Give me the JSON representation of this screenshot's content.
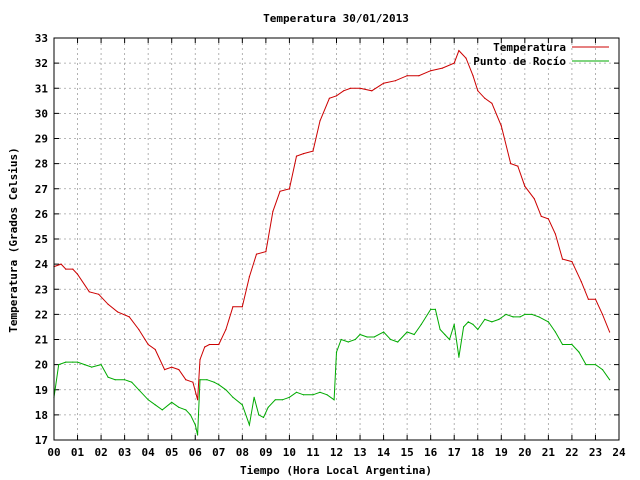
{
  "chart_data": {
    "type": "line",
    "title": "Temperatura 30/01/2013",
    "xlabel": "Tiempo (Hora Local Argentina)",
    "ylabel": "Temperatura (Grados Celsius)",
    "xlim": [
      0,
      24
    ],
    "ylim": [
      17,
      33
    ],
    "xticks": [
      "00",
      "01",
      "02",
      "03",
      "04",
      "05",
      "06",
      "07",
      "08",
      "09",
      "10",
      "11",
      "12",
      "13",
      "14",
      "15",
      "16",
      "17",
      "18",
      "19",
      "20",
      "21",
      "22",
      "23",
      "24"
    ],
    "yticks": [
      17,
      18,
      19,
      20,
      21,
      22,
      23,
      24,
      25,
      26,
      27,
      28,
      29,
      30,
      31,
      32,
      33
    ],
    "grid": true,
    "legend_position": "top-right",
    "colors": {
      "temperatura": "#cc0000",
      "punto_de_rocio": "#00aa00"
    },
    "series": [
      {
        "name": "Temperatura",
        "x": [
          0,
          0.3,
          0.5,
          0.8,
          1.0,
          1.5,
          1.9,
          2.3,
          2.7,
          3.2,
          3.6,
          4.0,
          4.3,
          4.7,
          5.0,
          5.3,
          5.6,
          5.9,
          6.1,
          6.2,
          6.4,
          6.6,
          7.0,
          7.3,
          7.6,
          8.0,
          8.3,
          8.6,
          9.0,
          9.3,
          9.6,
          10.0,
          10.3,
          10.6,
          11.0,
          11.3,
          11.7,
          12.0,
          12.3,
          12.6,
          13.0,
          13.5,
          14.0,
          14.5,
          15.0,
          15.5,
          16.0,
          16.5,
          17.0,
          17.2,
          17.5,
          17.8,
          18.0,
          18.3,
          18.6,
          19.0,
          19.4,
          19.7,
          20.0,
          20.4,
          20.7,
          21.0,
          21.3,
          21.6,
          22.0,
          22.4,
          22.7,
          23.0,
          23.3,
          23.6
        ],
        "y": [
          23.9,
          24.0,
          23.8,
          23.8,
          23.6,
          22.9,
          22.8,
          22.4,
          22.1,
          21.9,
          21.4,
          20.8,
          20.6,
          19.8,
          19.9,
          19.8,
          19.4,
          19.3,
          18.6,
          20.2,
          20.7,
          20.8,
          20.8,
          21.4,
          22.3,
          22.3,
          23.5,
          24.4,
          24.5,
          26.1,
          26.9,
          27.0,
          28.3,
          28.4,
          28.5,
          29.7,
          30.6,
          30.7,
          30.9,
          31.0,
          31.0,
          30.9,
          31.2,
          31.3,
          31.5,
          31.5,
          31.7,
          31.8,
          32.0,
          32.5,
          32.2,
          31.5,
          30.9,
          30.6,
          30.4,
          29.5,
          28.0,
          27.9,
          27.1,
          26.6,
          25.9,
          25.8,
          25.2,
          24.2,
          24.1,
          23.3,
          22.6,
          22.6,
          22.0,
          21.3
        ]
      },
      {
        "name": "Punto de Rocío",
        "x": [
          0,
          0.2,
          0.5,
          0.8,
          1.0,
          1.3,
          1.6,
          2.0,
          2.3,
          2.6,
          3.0,
          3.3,
          3.6,
          4.0,
          4.3,
          4.6,
          5.0,
          5.3,
          5.6,
          5.8,
          6.0,
          6.1,
          6.2,
          6.5,
          6.8,
          7.0,
          7.3,
          7.6,
          8.0,
          8.3,
          8.5,
          8.7,
          8.9,
          9.1,
          9.4,
          9.7,
          10.0,
          10.3,
          10.6,
          11.0,
          11.3,
          11.6,
          11.9,
          12.0,
          12.2,
          12.5,
          12.8,
          13.0,
          13.3,
          13.6,
          14.0,
          14.3,
          14.6,
          15.0,
          15.3,
          15.6,
          16.0,
          16.2,
          16.4,
          16.6,
          16.8,
          17.0,
          17.2,
          17.4,
          17.6,
          17.8,
          18.0,
          18.3,
          18.6,
          18.9,
          19.2,
          19.5,
          19.8,
          20.0,
          20.3,
          20.6,
          21.0,
          21.3,
          21.6,
          22.0,
          22.3,
          22.6,
          23.0,
          23.3,
          23.6
        ],
        "y": [
          18.7,
          20.0,
          20.1,
          20.1,
          20.1,
          20.0,
          19.9,
          20.0,
          19.5,
          19.4,
          19.4,
          19.3,
          19.0,
          18.6,
          18.4,
          18.2,
          18.5,
          18.3,
          18.2,
          18.0,
          17.6,
          17.2,
          19.4,
          19.4,
          19.3,
          19.2,
          19.0,
          18.7,
          18.4,
          17.6,
          18.7,
          18.0,
          17.9,
          18.3,
          18.6,
          18.6,
          18.7,
          18.9,
          18.8,
          18.8,
          18.9,
          18.8,
          18.6,
          20.5,
          21.0,
          20.9,
          21.0,
          21.2,
          21.1,
          21.1,
          21.3,
          21.0,
          20.9,
          21.3,
          21.2,
          21.6,
          22.2,
          22.2,
          21.4,
          21.2,
          21.0,
          21.6,
          20.3,
          21.5,
          21.7,
          21.6,
          21.4,
          21.8,
          21.7,
          21.8,
          22.0,
          21.9,
          21.9,
          22.0,
          22.0,
          21.9,
          21.7,
          21.3,
          20.8,
          20.8,
          20.5,
          20.0,
          20.0,
          19.8,
          19.4
        ]
      }
    ]
  }
}
